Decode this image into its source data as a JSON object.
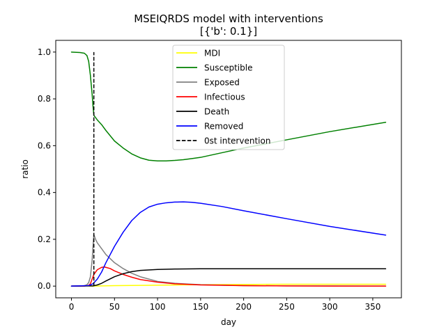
{
  "chart_data": {
    "type": "line",
    "title": "MSEIQRDS model with interventions",
    "subtitle": "[{'b': 0.1}]",
    "xlabel": "day",
    "ylabel": "ratio",
    "xlim": [
      -18.25,
      383.25
    ],
    "ylim": [
      -0.05,
      1.05
    ],
    "xticks": [
      0,
      50,
      100,
      150,
      200,
      250,
      300,
      350
    ],
    "yticks": [
      0.0,
      0.2,
      0.4,
      0.6,
      0.8,
      1.0
    ],
    "xtick_labels": [
      "0",
      "50",
      "100",
      "150",
      "200",
      "250",
      "300",
      "350"
    ],
    "ytick_labels": [
      "0.0",
      "0.2",
      "0.4",
      "0.6",
      "0.8",
      "1.0"
    ],
    "grid": false,
    "legend_position": "top-center",
    "series": [
      {
        "name": "MDI",
        "color": "#ffff00",
        "style": "solid",
        "x": [
          0,
          26,
          50,
          100,
          150,
          200,
          250,
          300,
          365
        ],
        "y": [
          0.0,
          0.0,
          0.002,
          0.004,
          0.006,
          0.007,
          0.008,
          0.008,
          0.008
        ]
      },
      {
        "name": "Susceptible",
        "color": "#008000",
        "style": "solid",
        "x": [
          0,
          10,
          15,
          18,
          20,
          22,
          24,
          25,
          26,
          27,
          30,
          35,
          40,
          50,
          60,
          70,
          80,
          90,
          100,
          110,
          120,
          130,
          140,
          150,
          175,
          200,
          250,
          300,
          365
        ],
        "y": [
          1.0,
          0.998,
          0.995,
          0.985,
          0.96,
          0.9,
          0.82,
          0.77,
          0.73,
          0.725,
          0.71,
          0.69,
          0.665,
          0.62,
          0.59,
          0.565,
          0.548,
          0.538,
          0.535,
          0.535,
          0.537,
          0.54,
          0.545,
          0.55,
          0.57,
          0.59,
          0.625,
          0.66,
          0.7
        ]
      },
      {
        "name": "Exposed",
        "color": "#808080",
        "style": "solid",
        "x": [
          0,
          10,
          15,
          18,
          20,
          22,
          24,
          25,
          26,
          27,
          28,
          30,
          35,
          40,
          50,
          60,
          70,
          80,
          100,
          120,
          150,
          200,
          250,
          300,
          365
        ],
        "y": [
          0.0,
          0.0,
          0.002,
          0.006,
          0.015,
          0.04,
          0.11,
          0.17,
          0.22,
          0.21,
          0.2,
          0.185,
          0.16,
          0.135,
          0.1,
          0.075,
          0.055,
          0.04,
          0.02,
          0.012,
          0.006,
          0.002,
          0.001,
          0.001,
          0.0
        ]
      },
      {
        "name": "Infectious",
        "color": "#ff0000",
        "style": "solid",
        "x": [
          0,
          15,
          20,
          22,
          24,
          26,
          28,
          30,
          35,
          38,
          40,
          45,
          50,
          60,
          70,
          80,
          100,
          120,
          150,
          200,
          250,
          300,
          365
        ],
        "y": [
          0.0,
          0.0,
          0.003,
          0.01,
          0.03,
          0.05,
          0.06,
          0.07,
          0.08,
          0.082,
          0.08,
          0.075,
          0.065,
          0.05,
          0.038,
          0.028,
          0.017,
          0.01,
          0.005,
          0.002,
          0.001,
          0.0,
          0.0
        ]
      },
      {
        "name": "Death",
        "color": "#000000",
        "style": "solid",
        "x": [
          0,
          25,
          30,
          35,
          40,
          50,
          60,
          70,
          80,
          100,
          120,
          150,
          200,
          250,
          300,
          365
        ],
        "y": [
          0.0,
          0.001,
          0.005,
          0.012,
          0.022,
          0.04,
          0.053,
          0.062,
          0.067,
          0.071,
          0.073,
          0.074,
          0.074,
          0.074,
          0.074,
          0.074
        ]
      },
      {
        "name": "Removed",
        "color": "#0000ff",
        "style": "solid",
        "x": [
          0,
          20,
          25,
          30,
          35,
          40,
          50,
          60,
          70,
          80,
          90,
          100,
          110,
          120,
          130,
          140,
          150,
          175,
          200,
          250,
          300,
          365
        ],
        "y": [
          0.0,
          0.002,
          0.01,
          0.03,
          0.06,
          0.1,
          0.17,
          0.23,
          0.28,
          0.315,
          0.338,
          0.35,
          0.356,
          0.359,
          0.36,
          0.358,
          0.354,
          0.34,
          0.322,
          0.288,
          0.255,
          0.218
        ]
      }
    ],
    "interventions": [
      {
        "name": "0st intervention",
        "x": 26,
        "y_range": [
          0.0,
          1.0
        ],
        "color": "#000000",
        "style": "dashed"
      }
    ]
  }
}
